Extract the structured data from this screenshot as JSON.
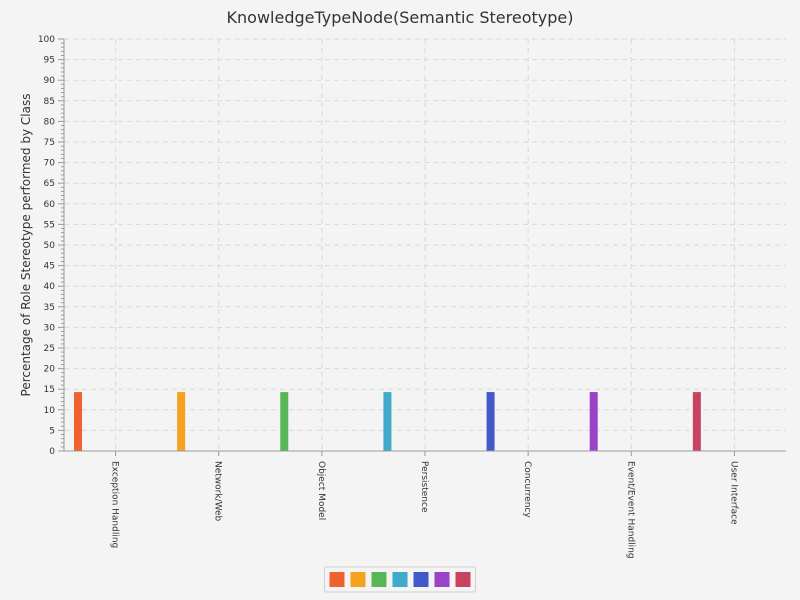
{
  "chart_data": {
    "type": "bar",
    "title": "KnowledgeTypeNode(Semantic Stereotype)",
    "xlabel": "",
    "ylabel": "Percentage of Role Stereotype performed by Class",
    "ylim": [
      0,
      100
    ],
    "ytick_step": 5,
    "grid": true,
    "legend_position": "bottom-center",
    "categories": [
      "Exception Handling",
      "Network/Web",
      "Object Model",
      "Persistence",
      "Concurrency",
      "Event/Event Handling",
      "User Interface"
    ],
    "values": [
      14.3,
      14.3,
      14.3,
      14.3,
      14.3,
      14.3,
      14.3
    ],
    "colors": [
      "#f0622d",
      "#f5a21f",
      "#57b757",
      "#41a9c9",
      "#4258c9",
      "#9a42c8",
      "#c8435f"
    ]
  }
}
